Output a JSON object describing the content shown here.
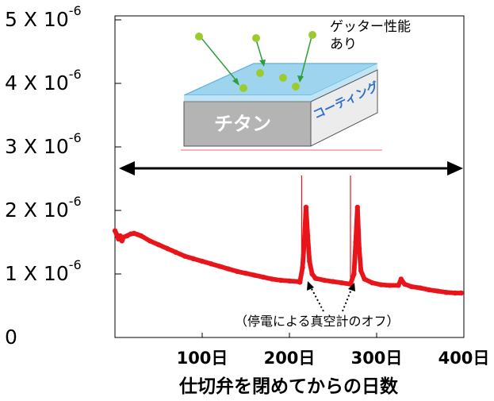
{
  "chart_data": {
    "type": "scatter",
    "xlabel": "仕切弁を閉めてからの日数",
    "x_ticks": [
      {
        "value": 100,
        "label": "100日"
      },
      {
        "value": 200,
        "label": "200日"
      },
      {
        "value": 300,
        "label": "300日"
      },
      {
        "value": 400,
        "label": "400日"
      }
    ],
    "y_ticks": [
      {
        "value": 0,
        "label": "0",
        "mantissa": "",
        "exp": ""
      },
      {
        "value": 1e-06,
        "label": "1 X 10",
        "mantissa": "1 X 10",
        "exp": "-6"
      },
      {
        "value": 2e-06,
        "label": "2 X 10",
        "mantissa": "2 X 10",
        "exp": "-6"
      },
      {
        "value": 3e-06,
        "label": "3 X 10",
        "mantissa": "3 X 10",
        "exp": "-6"
      },
      {
        "value": 4e-06,
        "label": "4 X 10",
        "mantissa": "4 X 10",
        "exp": "-6"
      },
      {
        "value": 5e-06,
        "label": "5 X 10",
        "mantissa": "5 X 10",
        "exp": "-6"
      }
    ],
    "xlim": [
      0,
      400
    ],
    "ylim": [
      0,
      5e-06
    ],
    "series_color": "#e8151b",
    "series": [
      {
        "points": [
          [
            0,
            1.68e-06
          ],
          [
            2,
            1.62e-06
          ],
          [
            4,
            1.55e-06
          ],
          [
            6,
            1.6e-06
          ],
          [
            8,
            1.52e-06
          ],
          [
            10,
            1.58e-06
          ],
          [
            14,
            1.6e-06
          ],
          [
            18,
            1.63e-06
          ],
          [
            22,
            1.64e-06
          ],
          [
            26,
            1.62e-06
          ],
          [
            30,
            1.6e-06
          ],
          [
            40,
            1.52e-06
          ],
          [
            50,
            1.46e-06
          ],
          [
            60,
            1.4e-06
          ],
          [
            70,
            1.34e-06
          ],
          [
            80,
            1.28e-06
          ],
          [
            90,
            1.24e-06
          ],
          [
            100,
            1.2e-06
          ],
          [
            110,
            1.16e-06
          ],
          [
            120,
            1.12e-06
          ],
          [
            130,
            1.08e-06
          ],
          [
            140,
            1.04e-06
          ],
          [
            150,
            1.01e-06
          ],
          [
            160,
            9.8e-07
          ],
          [
            170,
            9.5e-07
          ],
          [
            180,
            9.2e-07
          ],
          [
            190,
            9e-07
          ],
          [
            200,
            8.9e-07
          ],
          [
            210,
            8.8e-07
          ],
          [
            212,
            8.7e-07
          ],
          [
            215,
            1.1e-06
          ],
          [
            217,
            1.5e-06
          ],
          [
            219,
            2.05e-06
          ],
          [
            221,
            1.6e-06
          ],
          [
            223,
            1.2e-06
          ],
          [
            226,
            1e-06
          ],
          [
            230,
            9.3e-07
          ],
          [
            240,
            9e-07
          ],
          [
            250,
            8.8e-07
          ],
          [
            260,
            8.6e-07
          ],
          [
            270,
            8.4e-07
          ],
          [
            274,
            1e-06
          ],
          [
            276,
            1.5e-06
          ],
          [
            278,
            2.05e-06
          ],
          [
            280,
            1.4e-06
          ],
          [
            282,
            1.05e-06
          ],
          [
            286,
            9.2e-07
          ],
          [
            295,
            8.6e-07
          ],
          [
            305,
            8.3e-07
          ],
          [
            315,
            8.2e-07
          ],
          [
            325,
            8.2e-07
          ],
          [
            328,
            9.2e-07
          ],
          [
            332,
            8.4e-07
          ],
          [
            340,
            8e-07
          ],
          [
            350,
            7.8e-07
          ],
          [
            360,
            7.5e-07
          ],
          [
            370,
            7.3e-07
          ],
          [
            380,
            7.1e-07
          ],
          [
            390,
            7e-07
          ],
          [
            397,
            7e-07
          ]
        ]
      }
    ],
    "spikes": [
      {
        "x": 214,
        "y_top": 2.55e-06
      },
      {
        "x": 270,
        "y_top": 2.55e-06
      }
    ],
    "annotations": {
      "outage": "（停電による真空計のオフ）",
      "getter": [
        "ゲッター性能",
        "あり"
      ],
      "titanium": "チタン",
      "coating": "コーティング"
    }
  }
}
